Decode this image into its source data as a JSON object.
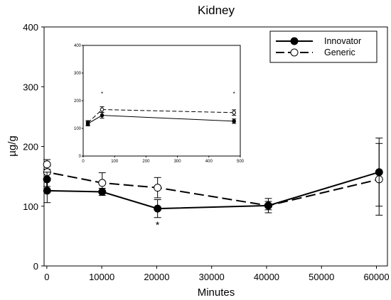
{
  "chart_data": {
    "type": "line",
    "title": "Kidney",
    "xlabel": "Minutes",
    "ylabel": "µg/g",
    "xlim": [
      -500,
      62000
    ],
    "ylim": [
      0,
      400
    ],
    "xticks": [
      "0",
      "10000",
      "20000",
      "30000",
      "40000",
      "50000",
      "60000"
    ],
    "yticks": [
      "0",
      "100",
      "200",
      "300",
      "400"
    ],
    "legend": {
      "position": "top-right"
    },
    "series": [
      {
        "name": "Innovator",
        "style": "solid",
        "marker": "filled-circle",
        "color": "#000000",
        "points": [
          {
            "x": 30,
            "y": 145,
            "err": 12
          },
          {
            "x": 60,
            "y": 126,
            "err": 20
          },
          {
            "x": 10080,
            "y": 124,
            "err": 6
          },
          {
            "x": 20160,
            "y": 96,
            "err": 15
          },
          {
            "x": 40320,
            "y": 101,
            "err": 12
          },
          {
            "x": 60480,
            "y": 157,
            "err": 57
          }
        ]
      },
      {
        "name": "Generic",
        "style": "dashed",
        "marker": "open-circle",
        "color": "#000000",
        "points": [
          {
            "x": 30,
            "y": 170,
            "err": 8
          },
          {
            "x": 60,
            "y": 157,
            "err": 10
          },
          {
            "x": 10080,
            "y": 139,
            "err": 17
          },
          {
            "x": 20160,
            "y": 131,
            "err": 17
          },
          {
            "x": 40320,
            "y": 101,
            "err": 7
          },
          {
            "x": 60480,
            "y": 145,
            "err": 60
          }
        ]
      }
    ],
    "annotations": [
      {
        "x": 20160,
        "y": 63,
        "text": "*"
      }
    ],
    "inset": {
      "xlim": [
        0,
        500
      ],
      "ylim": [
        0,
        400
      ],
      "xticks": [
        "0",
        "100",
        "200",
        "300",
        "400",
        "500"
      ],
      "yticks": [
        "0",
        "100",
        "200",
        "300",
        "400"
      ],
      "series": [
        {
          "name": "Innovator",
          "points": [
            {
              "x": 15,
              "y": 117,
              "err": 8
            },
            {
              "x": 60,
              "y": 147,
              "err": 10
            },
            {
              "x": 480,
              "y": 126,
              "err": 8
            }
          ]
        },
        {
          "name": "Generic",
          "points": [
            {
              "x": 15,
              "y": 120,
              "err": 8
            },
            {
              "x": 60,
              "y": 168,
              "err": 10
            },
            {
              "x": 480,
              "y": 157,
              "err": 10
            }
          ]
        }
      ],
      "annotations": [
        {
          "x": 60,
          "y": 218,
          "text": "*"
        },
        {
          "x": 480,
          "y": 218,
          "text": "*"
        }
      ]
    }
  }
}
